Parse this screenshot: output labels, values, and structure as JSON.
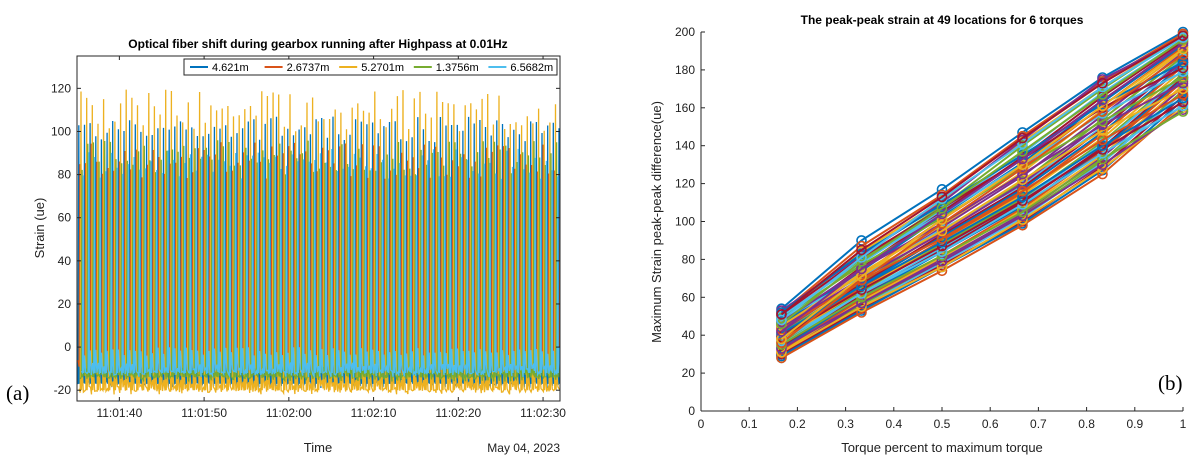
{
  "chart_data": [
    {
      "panel_label": "(a)",
      "type": "line",
      "title": "Optical fiber shift during gearbox running after Highpass at 0.01Hz",
      "xlabel": "Time",
      "ylabel": "Strain (ue)",
      "date_label": "May 04, 2023",
      "x_ticks": [
        "11:01:40",
        "11:01:50",
        "11:02:00",
        "11:02:10",
        "11:02:20",
        "11:02:30"
      ],
      "x_range": [
        "11:01:35",
        "11:02:32"
      ],
      "y_ticks": [
        "-20",
        "0",
        "20",
        "40",
        "60",
        "80",
        "100",
        "120"
      ],
      "ylim": [
        -25,
        135
      ],
      "grid": false,
      "legend_position": "top-right",
      "approx_pulses_per_second": 1.5,
      "series": [
        {
          "name": "4.621m",
          "color": "#0072bd",
          "baseline": -15,
          "peak_range": [
            95,
            107
          ]
        },
        {
          "name": "2.6737m",
          "color": "#d95319",
          "baseline": -8,
          "peak_range": [
            78,
            95
          ]
        },
        {
          "name": "5.2701m",
          "color": "#edb120",
          "baseline": -18,
          "peak_range": [
            100,
            120
          ]
        },
        {
          "name": "1.3756m",
          "color": "#77ac30",
          "baseline": -12,
          "peak_range": [
            80,
            96
          ]
        },
        {
          "name": "6.5682m",
          "color": "#4dbeee",
          "baseline": -10,
          "peak_range": [
            78,
            92
          ]
        }
      ]
    },
    {
      "panel_label": "(b)",
      "type": "line",
      "title": "The peak-peak strain at 49 locations for 6 torques",
      "xlabel": "Torque percent to maximum torque",
      "ylabel": "Maximum Strain peak-peak difference(ue)",
      "x_ticks": [
        "0",
        "0.1",
        "0.2",
        "0.3",
        "0.4",
        "0.5",
        "0.6",
        "0.7",
        "0.8",
        "0.9",
        "1"
      ],
      "y_ticks": [
        "0",
        "20",
        "40",
        "60",
        "80",
        "100",
        "120",
        "140",
        "160",
        "180",
        "200"
      ],
      "xlim": [
        0,
        1
      ],
      "ylim": [
        0,
        200
      ],
      "grid": false,
      "marker": "circle",
      "x": [
        0.167,
        0.333,
        0.5,
        0.667,
        0.833,
        1.0
      ],
      "series_count": 49,
      "series_colors": [
        "#0072bd",
        "#d95319",
        "#edb120",
        "#7e2f8e",
        "#77ac30",
        "#4dbeee",
        "#a2142f"
      ],
      "series": [
        {
          "values": [
            54,
            90,
            117,
            147,
            176,
            200
          ]
        },
        {
          "values": [
            52,
            87,
            114,
            145,
            174,
            199
          ]
        },
        {
          "values": [
            50,
            84,
            111,
            142,
            171,
            198
          ]
        },
        {
          "values": [
            53,
            82,
            110,
            143,
            175,
            197
          ]
        },
        {
          "values": [
            49,
            80,
            108,
            140,
            170,
            198
          ]
        },
        {
          "values": [
            47,
            78,
            106,
            136,
            168,
            196
          ]
        },
        {
          "values": [
            45,
            76,
            105,
            134,
            166,
            195
          ]
        },
        {
          "values": [
            46,
            74,
            103,
            131,
            163,
            193
          ]
        },
        {
          "values": [
            44,
            72,
            101,
            129,
            161,
            192
          ]
        },
        {
          "values": [
            43,
            73,
            98,
            126,
            159,
            190
          ]
        },
        {
          "values": [
            42,
            70,
            97,
            124,
            156,
            189
          ]
        },
        {
          "values": [
            41,
            68,
            95,
            121,
            154,
            187
          ]
        },
        {
          "values": [
            48,
            71,
            96,
            119,
            150,
            186
          ]
        },
        {
          "values": [
            40,
            67,
            93,
            118,
            149,
            185
          ]
        },
        {
          "values": [
            39,
            66,
            92,
            117,
            147,
            183
          ]
        },
        {
          "values": [
            38,
            65,
            90,
            115,
            146,
            182
          ]
        },
        {
          "values": [
            37,
            64,
            89,
            114,
            144,
            180
          ]
        },
        {
          "values": [
            44,
            70,
            94,
            120,
            152,
            184
          ]
        },
        {
          "values": [
            36,
            63,
            88,
            112,
            142,
            178
          ]
        },
        {
          "values": [
            35,
            62,
            86,
            111,
            141,
            177
          ]
        },
        {
          "values": [
            34,
            61,
            85,
            110,
            139,
            176
          ]
        },
        {
          "values": [
            33,
            60,
            84,
            108,
            138,
            175
          ]
        },
        {
          "values": [
            32,
            59,
            82,
            107,
            137,
            174
          ]
        },
        {
          "values": [
            31,
            58,
            81,
            106,
            135,
            172
          ]
        },
        {
          "values": [
            30,
            57,
            80,
            104,
            134,
            171
          ]
        },
        {
          "values": [
            29,
            56,
            79,
            103,
            132,
            169
          ]
        },
        {
          "values": [
            28,
            55,
            78,
            102,
            131,
            168
          ]
        },
        {
          "values": [
            30,
            54,
            77,
            100,
            129,
            166
          ]
        },
        {
          "values": [
            29,
            53,
            76,
            99,
            127,
            164
          ]
        },
        {
          "values": [
            28,
            52,
            74,
            98,
            125,
            162
          ]
        },
        {
          "values": [
            31,
            55,
            76,
            101,
            128,
            160
          ]
        },
        {
          "values": [
            33,
            57,
            79,
            103,
            130,
            159
          ]
        },
        {
          "values": [
            35,
            60,
            82,
            105,
            133,
            158
          ]
        },
        {
          "values": [
            37,
            62,
            84,
            109,
            136,
            161
          ]
        },
        {
          "values": [
            39,
            64,
            87,
            111,
            138,
            163
          ]
        },
        {
          "values": [
            41,
            66,
            89,
            113,
            140,
            165
          ]
        },
        {
          "values": [
            43,
            69,
            91,
            116,
            143,
            167
          ]
        },
        {
          "values": [
            45,
            72,
            95,
            122,
            148,
            170
          ]
        },
        {
          "values": [
            47,
            75,
            99,
            125,
            151,
            173
          ]
        },
        {
          "values": [
            49,
            77,
            102,
            128,
            153,
            176
          ]
        },
        {
          "values": [
            50,
            79,
            104,
            130,
            157,
            179
          ]
        },
        {
          "values": [
            51,
            81,
            107,
            133,
            160,
            181
          ]
        },
        {
          "values": [
            52,
            83,
            109,
            135,
            162,
            184
          ]
        },
        {
          "values": [
            36,
            69,
            99,
            128,
            158,
            188
          ]
        },
        {
          "values": [
            38,
            71,
            101,
            130,
            161,
            191
          ]
        },
        {
          "values": [
            42,
            75,
            104,
            133,
            164,
            194
          ]
        },
        {
          "values": [
            46,
            79,
            107,
            137,
            167,
            196
          ]
        },
        {
          "values": [
            48,
            81,
            112,
            141,
            171,
            197
          ]
        },
        {
          "values": [
            51,
            85,
            113,
            144,
            173,
            198
          ]
        }
      ]
    }
  ]
}
